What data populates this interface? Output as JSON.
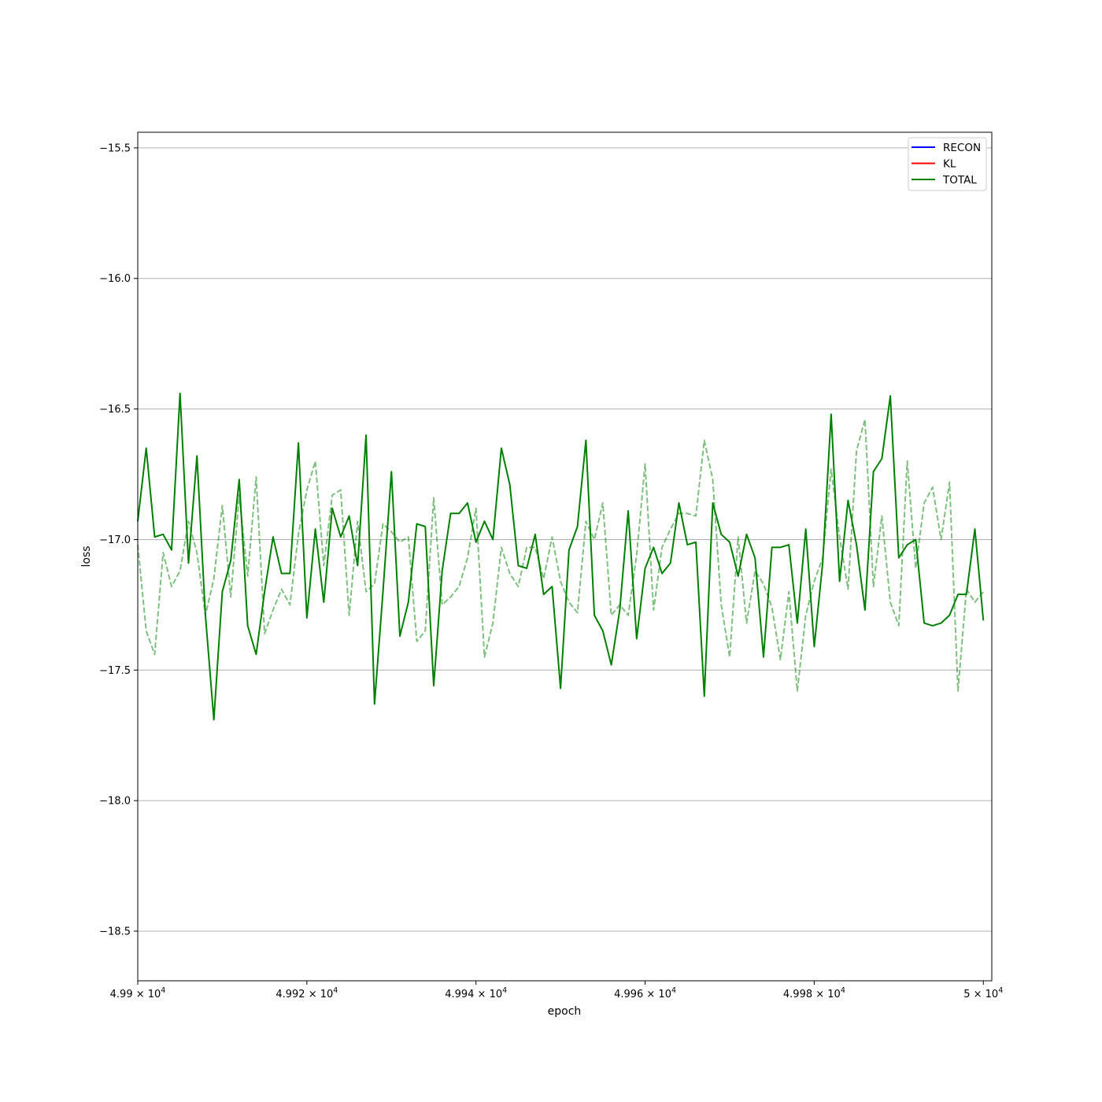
{
  "chart_data": {
    "type": "line",
    "title": "",
    "xlabel": "epoch",
    "ylabel": "loss",
    "xlim": [
      49900,
      50001
    ],
    "ylim": [
      -18.69,
      -15.44
    ],
    "grid": "horizontal",
    "legend_position": "top-right",
    "x_tick_labels": [
      {
        "value": 49900,
        "label": "4.99 × 10^4"
      },
      {
        "value": 49920,
        "label": "4.992 × 10^4"
      },
      {
        "value": 49940,
        "label": "4.994 × 10^4"
      },
      {
        "value": 49960,
        "label": "4.996 × 10^4"
      },
      {
        "value": 49980,
        "label": "4.998 × 10^4"
      },
      {
        "value": 50000,
        "label": "5 × 10^4"
      }
    ],
    "y_tick_labels": [
      {
        "value": -15.5,
        "label": "−15.5"
      },
      {
        "value": -16.0,
        "label": "−16.0"
      },
      {
        "value": -16.5,
        "label": "−16.5"
      },
      {
        "value": -17.0,
        "label": "−17.0"
      },
      {
        "value": -17.5,
        "label": "−17.5"
      },
      {
        "value": -18.0,
        "label": "−18.0"
      },
      {
        "value": -18.5,
        "label": "−18.5"
      }
    ],
    "legend": [
      {
        "name": "RECON",
        "color": "#0000ff"
      },
      {
        "name": "KL",
        "color": "#ff0000"
      },
      {
        "name": "TOTAL",
        "color": "#008000"
      }
    ],
    "x_start": 49900,
    "x_step": 1,
    "series": [
      {
        "name": "TOTAL",
        "color": "#008000",
        "style": "solid",
        "opacity": 1,
        "values": [
          -16.93,
          -16.65,
          -16.99,
          -16.98,
          -17.04,
          -16.44,
          -17.09,
          -16.68,
          -17.29,
          -17.69,
          -17.2,
          -17.08,
          -16.77,
          -17.33,
          -17.44,
          -17.2,
          -16.99,
          -17.13,
          -17.13,
          -16.63,
          -17.3,
          -16.96,
          -17.24,
          -16.88,
          -16.99,
          -16.91,
          -17.1,
          -16.6,
          -17.63,
          -17.2,
          -16.74,
          -17.37,
          -17.24,
          -16.94,
          -16.95,
          -17.56,
          -17.12,
          -16.9,
          -16.9,
          -16.86,
          -17.01,
          -16.93,
          -17.0,
          -16.65,
          -16.79,
          -17.1,
          -17.11,
          -16.98,
          -17.21,
          -17.18,
          -17.57,
          -17.04,
          -16.95,
          -16.62,
          -17.29,
          -17.35,
          -17.48,
          -17.27,
          -16.89,
          -17.38,
          -17.11,
          -17.03,
          -17.13,
          -17.09,
          -16.86,
          -17.02,
          -17.01,
          -17.6,
          -16.86,
          -16.98,
          -17.01,
          -17.14,
          -16.98,
          -17.07,
          -17.45,
          -17.03,
          -17.03,
          -17.02,
          -17.32,
          -16.96,
          -17.41,
          -17.09,
          -16.52,
          -17.16,
          -16.85,
          -17.02,
          -17.27,
          -16.74,
          -16.69,
          -16.45,
          -17.07,
          -17.02,
          -17.0,
          -17.32,
          -17.33,
          -17.32,
          -17.29,
          -17.21,
          -17.21,
          -16.96,
          -17.31
        ]
      },
      {
        "name": "",
        "color": "#008000",
        "style": "dashed",
        "opacity": 0.5,
        "values": [
          -17.02,
          -17.35,
          -17.44,
          -17.05,
          -17.18,
          -17.12,
          -16.93,
          -17.05,
          -17.29,
          -17.15,
          -16.87,
          -17.22,
          -16.83,
          -17.14,
          -16.76,
          -17.36,
          -17.27,
          -17.19,
          -17.25,
          -16.98,
          -16.81,
          -16.7,
          -17.1,
          -16.83,
          -16.81,
          -17.29,
          -16.93,
          -17.2,
          -17.17,
          -16.94,
          -16.97,
          -17.01,
          -16.99,
          -17.39,
          -17.35,
          -16.84,
          -17.25,
          -17.22,
          -17.18,
          -17.07,
          -16.88,
          -17.45,
          -17.32,
          -17.03,
          -17.13,
          -17.18,
          -17.03,
          -17.03,
          -17.15,
          -16.99,
          -17.16,
          -17.24,
          -17.28,
          -16.93,
          -17.0,
          -16.86,
          -17.29,
          -17.25,
          -17.29,
          -17.06,
          -16.71,
          -17.27,
          -17.03,
          -16.96,
          -16.9,
          -16.9,
          -16.91,
          -16.62,
          -16.77,
          -17.25,
          -17.45,
          -16.99,
          -17.32,
          -17.12,
          -17.17,
          -17.26,
          -17.46,
          -17.2,
          -17.58,
          -17.29,
          -17.16,
          -17.07,
          -16.73,
          -16.99,
          -17.19,
          -16.66,
          -16.54,
          -17.18,
          -16.91,
          -17.24,
          -17.33,
          -16.7,
          -17.11,
          -16.86,
          -16.8,
          -17.0,
          -16.78,
          -17.58,
          -17.19,
          -17.24,
          -17.2
        ]
      }
    ]
  }
}
